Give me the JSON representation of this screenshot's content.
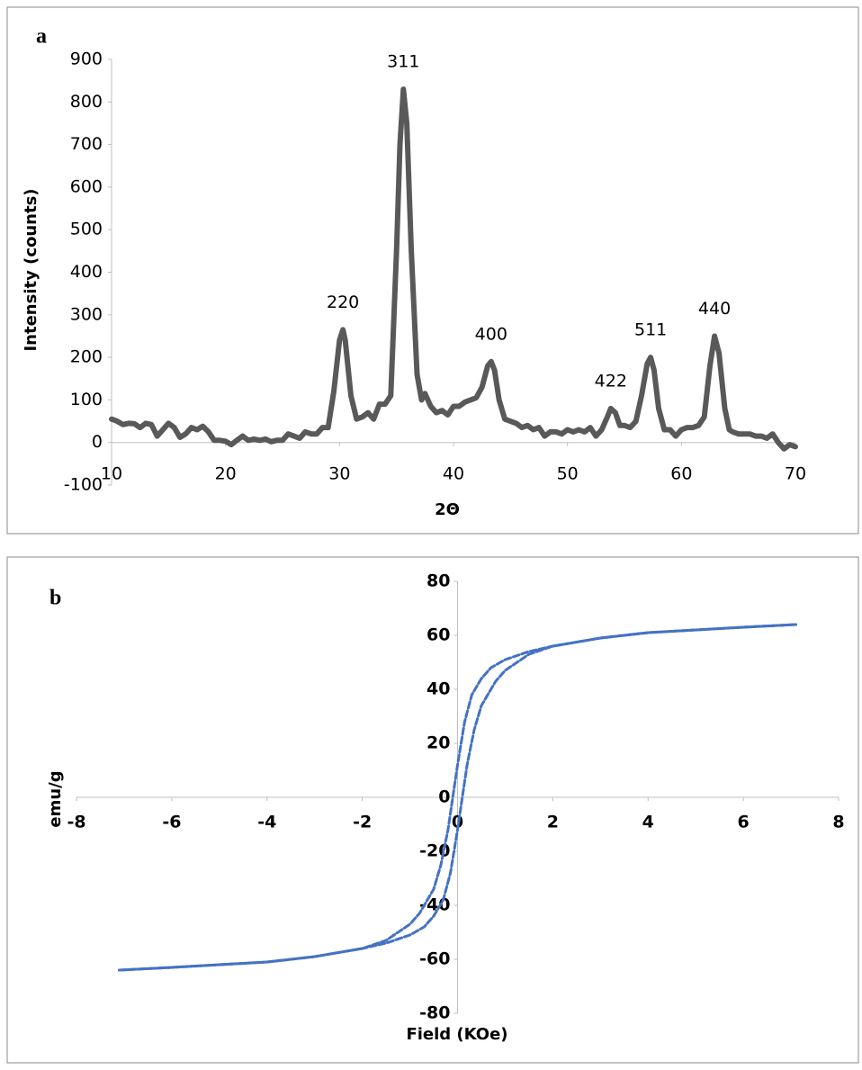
{
  "chart_data": [
    {
      "type": "line",
      "panel_label": "a",
      "ylabel": "Intensity (counts)",
      "xlabel": "2Θ",
      "xlim": [
        10,
        70
      ],
      "xticks": [
        10,
        20,
        30,
        40,
        50,
        60,
        70
      ],
      "ylim": [
        -100,
        900
      ],
      "yticks": [
        -100,
        0,
        100,
        200,
        300,
        400,
        500,
        600,
        700,
        800,
        900
      ],
      "series": [
        {
          "color": "#595959",
          "x": [
            10,
            10.5,
            11,
            11.5,
            12,
            12.5,
            13,
            13.5,
            14,
            14.5,
            15,
            15.5,
            16,
            16.5,
            17,
            17.5,
            18,
            18.5,
            19,
            19.5,
            20,
            20.5,
            21,
            21.5,
            22,
            22.5,
            23,
            23.5,
            24,
            24.5,
            25,
            25.5,
            26,
            26.5,
            27,
            27.5,
            28,
            28.5,
            29,
            29.5,
            30,
            30.3,
            30.5,
            31,
            31.5,
            32,
            32.5,
            33,
            33.5,
            34,
            34.5,
            35,
            35.3,
            35.6,
            35.9,
            36.3,
            36.8,
            37.2,
            37.5,
            38,
            38.5,
            39,
            39.5,
            40,
            40.5,
            41,
            41.5,
            42,
            42.5,
            43,
            43.3,
            43.6,
            44,
            44.5,
            45,
            45.5,
            46,
            46.5,
            47,
            47.5,
            48,
            48.5,
            49,
            49.5,
            50,
            50.5,
            51,
            51.5,
            52,
            52.5,
            53,
            53.5,
            53.8,
            54.2,
            54.6,
            55,
            55.5,
            56,
            56.5,
            57,
            57.3,
            57.6,
            58,
            58.5,
            59,
            59.5,
            60,
            60.5,
            61,
            61.5,
            62,
            62.5,
            62.9,
            63.3,
            63.8,
            64.2,
            64.5,
            65,
            65.5,
            66,
            66.5,
            67,
            67.5,
            68,
            68.5,
            69,
            69.5,
            70
          ],
          "values": [
            55,
            50,
            42,
            45,
            44,
            35,
            45,
            42,
            15,
            30,
            45,
            35,
            12,
            20,
            35,
            30,
            38,
            25,
            5,
            5,
            3,
            -5,
            5,
            15,
            5,
            8,
            5,
            8,
            2,
            5,
            5,
            20,
            15,
            10,
            25,
            20,
            20,
            35,
            35,
            120,
            240,
            265,
            240,
            110,
            55,
            60,
            70,
            55,
            90,
            90,
            110,
            450,
            700,
            830,
            750,
            450,
            160,
            100,
            115,
            85,
            70,
            75,
            65,
            85,
            85,
            95,
            100,
            105,
            130,
            180,
            190,
            170,
            100,
            55,
            50,
            45,
            35,
            40,
            30,
            35,
            15,
            25,
            25,
            20,
            30,
            25,
            30,
            25,
            35,
            15,
            30,
            60,
            80,
            70,
            40,
            40,
            35,
            50,
            110,
            185,
            200,
            170,
            80,
            30,
            30,
            15,
            30,
            35,
            35,
            40,
            60,
            180,
            250,
            210,
            80,
            30,
            25,
            20,
            20,
            20,
            15,
            15,
            10,
            20,
            0,
            -15,
            -5,
            -10
          ]
        }
      ],
      "annotations": [
        {
          "text": "220",
          "x": 30.3,
          "y": 265
        },
        {
          "text": "311",
          "x": 35.6,
          "y": 830
        },
        {
          "text": "400",
          "x": 43.3,
          "y": 190
        },
        {
          "text": "422",
          "x": 53.8,
          "y": 80
        },
        {
          "text": "511",
          "x": 57.3,
          "y": 200
        },
        {
          "text": "440",
          "x": 62.9,
          "y": 250
        }
      ]
    },
    {
      "type": "line",
      "panel_label": "b",
      "ylabel": "emu/g",
      "xlabel": "Field (KOe)",
      "xlim": [
        -8,
        8
      ],
      "xticks": [
        -8,
        -6,
        -4,
        -2,
        0,
        2,
        4,
        6,
        8
      ],
      "ylim": [
        -80,
        80
      ],
      "yticks": [
        -80,
        -60,
        -40,
        -20,
        0,
        20,
        40,
        60,
        80
      ],
      "series": [
        {
          "color": "#4472c4",
          "dashed": true,
          "x": [
            7.1,
            6,
            5,
            4,
            3,
            2,
            1.5,
            1,
            0.7,
            0.5,
            0.3,
            0.15,
            0,
            -0.1,
            -0.2,
            -0.35,
            -0.5,
            -0.8,
            -1,
            -1.5,
            -2,
            -3,
            -4,
            -5,
            -6,
            -7.1
          ],
          "values": [
            64,
            63,
            62,
            61,
            59,
            56,
            54,
            51,
            48,
            44,
            38,
            28,
            12,
            0,
            -12,
            -25,
            -34,
            -43,
            -47,
            -53,
            -56,
            -59,
            -61,
            -62,
            -63,
            -64
          ]
        },
        {
          "color": "#4472c4",
          "dashed": true,
          "x": [
            -7.1,
            -6,
            -5,
            -4,
            -3,
            -2,
            -1.5,
            -1,
            -0.7,
            -0.5,
            -0.3,
            -0.15,
            0,
            0.1,
            0.2,
            0.35,
            0.5,
            0.8,
            1,
            1.5,
            2,
            3,
            4,
            5,
            6,
            7.1
          ],
          "values": [
            -64,
            -63,
            -62,
            -61,
            -59,
            -56,
            -54,
            -51,
            -48,
            -44,
            -38,
            -28,
            -12,
            0,
            12,
            25,
            34,
            43,
            47,
            53,
            56,
            59,
            61,
            62,
            63,
            64
          ]
        }
      ]
    }
  ]
}
